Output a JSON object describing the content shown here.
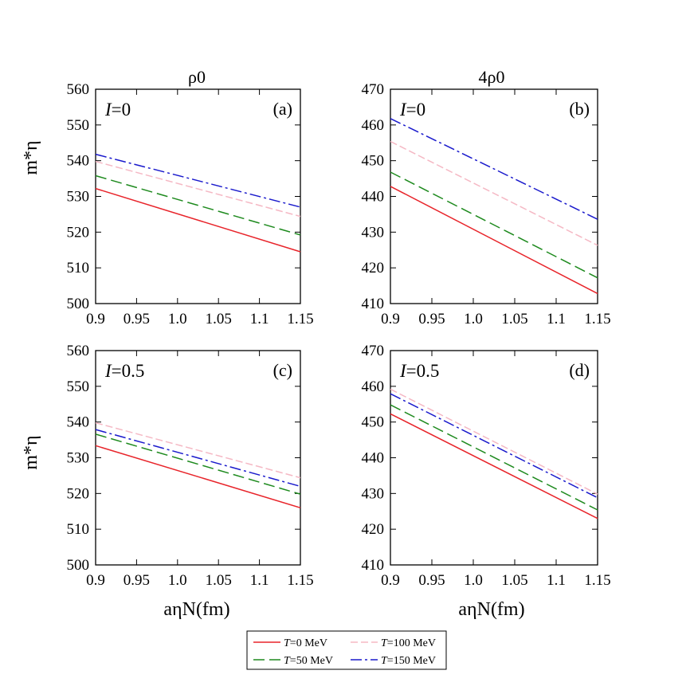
{
  "column_titles": [
    "ρ0",
    "4ρ0"
  ],
  "ylabel": "m*η",
  "xlabel": "aηN(fm)",
  "legend": [
    {
      "label": "T=0 MeV",
      "color": "#e8242a",
      "dash": "solid"
    },
    {
      "label": "T=100 MeV",
      "color": "#f5b8c4",
      "dash": "dashed-fine"
    },
    {
      "label": "T=50 MeV",
      "color": "#1e8a1e",
      "dash": "dashed"
    },
    {
      "label": "T=150 MeV",
      "color": "#1a1acc",
      "dash": "dash-dot"
    }
  ],
  "chart_data": [
    {
      "type": "line",
      "panel": "(a)",
      "annotation": "I=0",
      "column_title": "ρ0",
      "x": [
        0.9,
        1.15
      ],
      "xlim": [
        0.9,
        1.15
      ],
      "ylim": [
        500,
        560
      ],
      "xticks": [
        "0.9",
        "0.95",
        "1.0",
        "1.05",
        "1.1",
        "1.15"
      ],
      "yticks": [
        "500",
        "510",
        "520",
        "530",
        "540",
        "550",
        "560"
      ],
      "series": [
        {
          "name": "T=0 MeV",
          "values": [
            532.2,
            514.5
          ]
        },
        {
          "name": "T=50 MeV",
          "values": [
            535.8,
            519.2
          ]
        },
        {
          "name": "T=100 MeV",
          "values": [
            539.8,
            524.4
          ]
        },
        {
          "name": "T=150 MeV",
          "values": [
            541.8,
            527.0
          ]
        }
      ]
    },
    {
      "type": "line",
      "panel": "(b)",
      "annotation": "I=0",
      "column_title": "4ρ0",
      "x": [
        0.9,
        1.15
      ],
      "xlim": [
        0.9,
        1.15
      ],
      "ylim": [
        410,
        470
      ],
      "xticks": [
        "0.9",
        "0.95",
        "1.0",
        "1.05",
        "1.1",
        "1.15"
      ],
      "yticks": [
        "410",
        "420",
        "430",
        "440",
        "450",
        "460",
        "470"
      ],
      "series": [
        {
          "name": "T=0 MeV",
          "values": [
            442.8,
            412.8
          ]
        },
        {
          "name": "T=50 MeV",
          "values": [
            446.8,
            417.2
          ]
        },
        {
          "name": "T=100 MeV",
          "values": [
            455.4,
            426.3
          ]
        },
        {
          "name": "T=150 MeV",
          "values": [
            461.8,
            433.6
          ]
        }
      ]
    },
    {
      "type": "line",
      "panel": "(c)",
      "annotation": "I=0.5",
      "x": [
        0.9,
        1.15
      ],
      "xlim": [
        0.9,
        1.15
      ],
      "ylim": [
        500,
        560
      ],
      "xticks": [
        "0.9",
        "0.95",
        "1.0",
        "1.05",
        "1.1",
        "1.15"
      ],
      "yticks": [
        "500",
        "510",
        "520",
        "530",
        "540",
        "550",
        "560"
      ],
      "series": [
        {
          "name": "T=0 MeV",
          "values": [
            533.4,
            516.0
          ]
        },
        {
          "name": "T=50 MeV",
          "values": [
            536.6,
            519.8
          ]
        },
        {
          "name": "T=100 MeV",
          "values": [
            539.8,
            524.4
          ]
        },
        {
          "name": "T=150 MeV",
          "values": [
            537.9,
            522.0
          ]
        }
      ]
    },
    {
      "type": "line",
      "panel": "(d)",
      "annotation": "I=0.5",
      "x": [
        0.9,
        1.15
      ],
      "xlim": [
        0.9,
        1.15
      ],
      "ylim": [
        410,
        470
      ],
      "xticks": [
        "0.9",
        "0.95",
        "1.0",
        "1.05",
        "1.1",
        "1.15"
      ],
      "yticks": [
        "410",
        "420",
        "430",
        "440",
        "450",
        "460",
        "470"
      ],
      "series": [
        {
          "name": "T=0 MeV",
          "values": [
            452.3,
            423.0
          ]
        },
        {
          "name": "T=50 MeV",
          "values": [
            454.8,
            425.4
          ]
        },
        {
          "name": "T=100 MeV",
          "values": [
            459.2,
            429.8
          ]
        },
        {
          "name": "T=150 MeV",
          "values": [
            457.9,
            428.8
          ]
        }
      ]
    }
  ]
}
